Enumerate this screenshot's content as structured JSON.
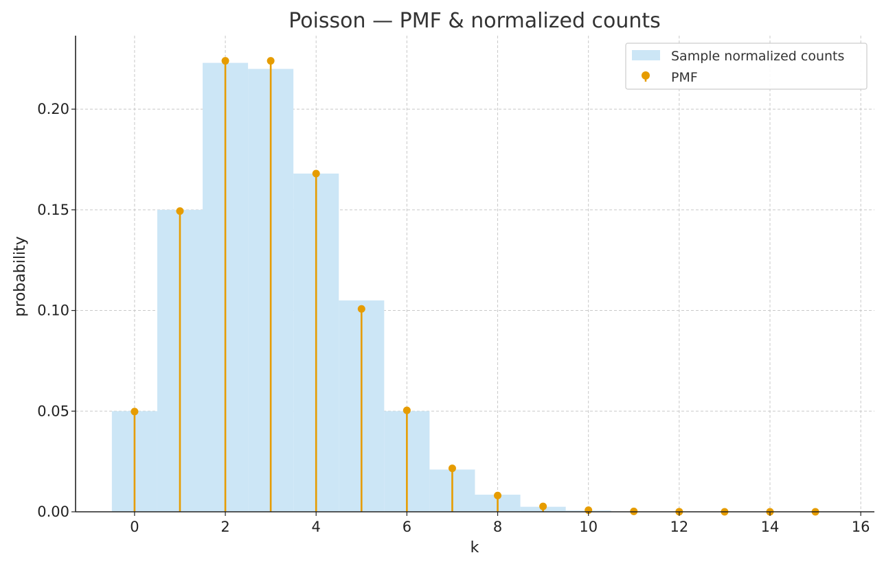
{
  "chart_data": {
    "type": "bar",
    "title": "Poisson — PMF & normalized counts",
    "xlabel": "k",
    "ylabel": "probability",
    "xlim": [
      -1.3,
      16.3
    ],
    "ylim": [
      0,
      0.2365
    ],
    "xticks": [
      0,
      2,
      4,
      6,
      8,
      10,
      12,
      14,
      16
    ],
    "yticks": [
      0.0,
      0.05,
      0.1,
      0.15,
      0.2
    ],
    "ytick_labels": [
      "0.00",
      "0.05",
      "0.10",
      "0.15",
      "0.20"
    ],
    "grid": true,
    "legend_position": "top-right",
    "colors": {
      "histogram": "#cce6f6",
      "pmf": "#e69c00",
      "axis": "#222222",
      "grid": "#c8c8c8"
    },
    "series": [
      {
        "name": "Sample normalized counts",
        "type": "histogram",
        "x": [
          0,
          1,
          2,
          3,
          4,
          5,
          6,
          7,
          8,
          9,
          10,
          11
        ],
        "values": [
          0.05,
          0.15,
          0.223,
          0.22,
          0.168,
          0.105,
          0.05,
          0.021,
          0.0085,
          0.0025,
          0.0006,
          0.0001
        ]
      },
      {
        "name": "PMF",
        "type": "stem",
        "x": [
          0,
          1,
          2,
          3,
          4,
          5,
          6,
          7,
          8,
          9,
          10,
          11,
          12,
          13,
          14,
          15
        ],
        "values": [
          0.0498,
          0.1494,
          0.224,
          0.224,
          0.168,
          0.1008,
          0.0504,
          0.0216,
          0.0081,
          0.0027,
          0.0008,
          0.0002,
          6e-05,
          1e-05,
          3e-06,
          6e-07
        ]
      }
    ]
  }
}
